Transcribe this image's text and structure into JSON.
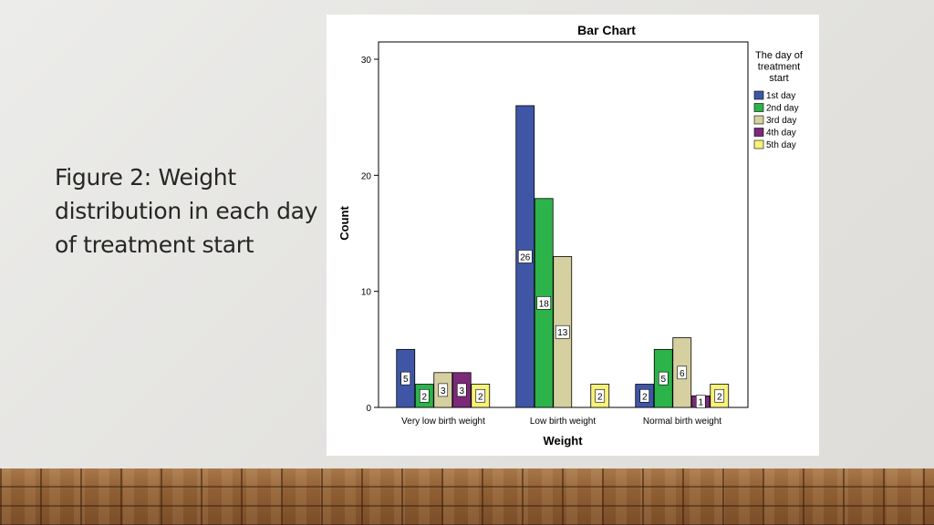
{
  "slide": {
    "title": "Figure 2: Weight distribution in each day of treatment start"
  },
  "chart_data": {
    "type": "bar",
    "title": "Bar Chart",
    "xlabel": "Weight",
    "ylabel": "Count",
    "ylim": [
      0,
      30
    ],
    "yticks": [
      "0",
      "10",
      "20",
      "30"
    ],
    "categories": [
      "Very low birth weight",
      "Low birth weight",
      "Normal birth weight"
    ],
    "legend_title": "The day of treatment start",
    "legend_position": "right",
    "series": [
      {
        "name": "1st day",
        "color": "#3f56a6",
        "values": [
          5,
          26,
          2
        ]
      },
      {
        "name": "2nd day",
        "color": "#2cb34a",
        "values": [
          2,
          18,
          5
        ]
      },
      {
        "name": "3rd day",
        "color": "#d6d0a0",
        "values": [
          3,
          13,
          6
        ]
      },
      {
        "name": "4th day",
        "color": "#7a2a78",
        "values": [
          3,
          0,
          1
        ]
      },
      {
        "name": "5th day",
        "color": "#f7f27a",
        "values": [
          2,
          2,
          2
        ]
      }
    ]
  }
}
